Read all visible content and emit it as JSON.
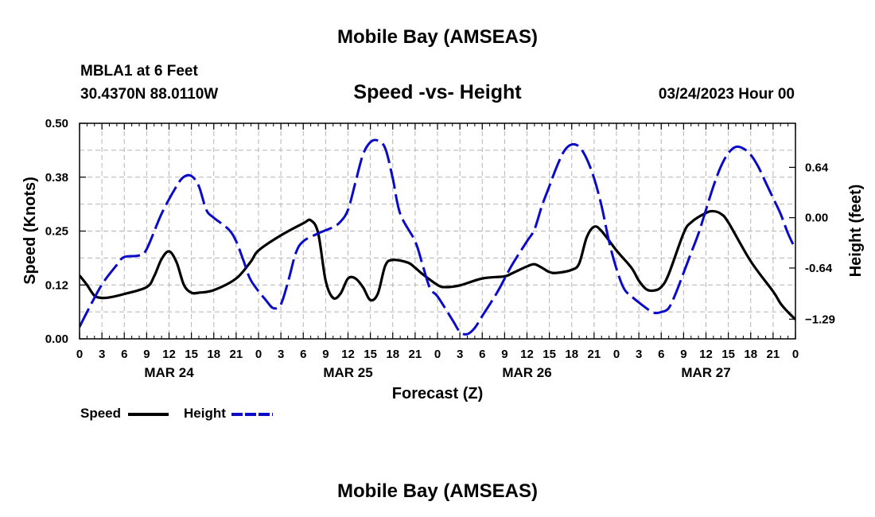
{
  "header": {
    "title": "Mobile Bay (AMSEAS)",
    "station": "MBLA1 at 6 Feet",
    "coords": "30.4370N  88.0110W",
    "subtitle": "Speed -vs- Height",
    "datetime": "03/24/2023 Hour 00",
    "footer_title": "Mobile Bay (AMSEAS)"
  },
  "chart_data": {
    "type": "line",
    "title": "Speed -vs- Height",
    "xlabel": "Forecast (Z)",
    "ylabel": "Speed (Knots)",
    "y2label": "Height (feet)",
    "ylim": [
      0,
      0.5
    ],
    "y2lim": [
      -1.54,
      1.2
    ],
    "xlim": [
      0,
      96
    ],
    "x_major_step_hours": 3,
    "x_tick_labels": [
      "0",
      "3",
      "6",
      "9",
      "12",
      "15",
      "18",
      "21",
      "0",
      "3",
      "6",
      "9",
      "12",
      "15",
      "18",
      "21",
      "0",
      "3",
      "6",
      "9",
      "12",
      "15",
      "18",
      "21",
      "0",
      "3",
      "6",
      "9",
      "12",
      "15",
      "18",
      "21",
      "0"
    ],
    "month_labels": [
      {
        "label": "MAR 24",
        "hour": 12
      },
      {
        "label": "MAR 25",
        "hour": 36
      },
      {
        "label": "MAR 26",
        "hour": 60
      },
      {
        "label": "MAR 27",
        "hour": 84
      }
    ],
    "y_ticks": [
      {
        "value": 0.0,
        "label": "0.00"
      },
      {
        "value": 0.125,
        "label": "0.12"
      },
      {
        "value": 0.25,
        "label": "0.25"
      },
      {
        "value": 0.375,
        "label": "0.38"
      },
      {
        "value": 0.5,
        "label": "0.50"
      }
    ],
    "y2_ticks": [
      {
        "value": 0.64,
        "label": "0.64"
      },
      {
        "value": 0.0,
        "label": "0.00"
      },
      {
        "value": -0.64,
        "label": "-0.64"
      },
      {
        "value": -1.29,
        "label": "−1.29"
      }
    ],
    "grid": true,
    "legend_position": "bottom-left",
    "series": [
      {
        "name": "Speed",
        "axis": "left",
        "color": "#000000",
        "dash": "solid",
        "points": [
          [
            0,
            0.147
          ],
          [
            1,
            0.125
          ],
          [
            2,
            0.1
          ],
          [
            3,
            0.095
          ],
          [
            4,
            0.096
          ],
          [
            6,
            0.104
          ],
          [
            9,
            0.12
          ],
          [
            10,
            0.145
          ],
          [
            11,
            0.185
          ],
          [
            12,
            0.203
          ],
          [
            13,
            0.178
          ],
          [
            14,
            0.125
          ],
          [
            15,
            0.107
          ],
          [
            16,
            0.107
          ],
          [
            18,
            0.113
          ],
          [
            21,
            0.14
          ],
          [
            23,
            0.18
          ],
          [
            24,
            0.205
          ],
          [
            27,
            0.24
          ],
          [
            30,
            0.268
          ],
          [
            31,
            0.275
          ],
          [
            32,
            0.245
          ],
          [
            33,
            0.135
          ],
          [
            34,
            0.095
          ],
          [
            35,
            0.105
          ],
          [
            36,
            0.14
          ],
          [
            37,
            0.14
          ],
          [
            38,
            0.12
          ],
          [
            39,
            0.09
          ],
          [
            40,
            0.105
          ],
          [
            41,
            0.17
          ],
          [
            42,
            0.183
          ],
          [
            44,
            0.177
          ],
          [
            45,
            0.165
          ],
          [
            46,
            0.15
          ],
          [
            48,
            0.125
          ],
          [
            49,
            0.12
          ],
          [
            51,
            0.124
          ],
          [
            54,
            0.14
          ],
          [
            57,
            0.145
          ],
          [
            58,
            0.152
          ],
          [
            60,
            0.168
          ],
          [
            61,
            0.173
          ],
          [
            62,
            0.165
          ],
          [
            63,
            0.155
          ],
          [
            64,
            0.153
          ],
          [
            66,
            0.16
          ],
          [
            67,
            0.175
          ],
          [
            68,
            0.235
          ],
          [
            69,
            0.26
          ],
          [
            70,
            0.25
          ],
          [
            72,
            0.205
          ],
          [
            74,
            0.165
          ],
          [
            75,
            0.135
          ],
          [
            76,
            0.115
          ],
          [
            77,
            0.112
          ],
          [
            78,
            0.12
          ],
          [
            79,
            0.15
          ],
          [
            81,
            0.245
          ],
          [
            82,
            0.27
          ],
          [
            84,
            0.292
          ],
          [
            85,
            0.296
          ],
          [
            86,
            0.29
          ],
          [
            87,
            0.27
          ],
          [
            90,
            0.18
          ],
          [
            93,
            0.11
          ],
          [
            94,
            0.082
          ],
          [
            95,
            0.062
          ],
          [
            96,
            0.045
          ]
        ]
      },
      {
        "name": "Height",
        "axis": "right",
        "color": "#0a0ac8",
        "dash": "dashed",
        "points": [
          [
            0,
            -1.39
          ],
          [
            1,
            -1.2
          ],
          [
            3,
            -0.85
          ],
          [
            5,
            -0.6
          ],
          [
            6,
            -0.5
          ],
          [
            8,
            -0.48
          ],
          [
            9,
            -0.4
          ],
          [
            11,
            0.05
          ],
          [
            13,
            0.4
          ],
          [
            14,
            0.52
          ],
          [
            15,
            0.53
          ],
          [
            16,
            0.4
          ],
          [
            17,
            0.1
          ],
          [
            18,
            0.0
          ],
          [
            20,
            -0.15
          ],
          [
            21,
            -0.3
          ],
          [
            22,
            -0.55
          ],
          [
            23,
            -0.8
          ],
          [
            25,
            -1.05
          ],
          [
            26,
            -1.15
          ],
          [
            27,
            -1.1
          ],
          [
            28,
            -0.8
          ],
          [
            29,
            -0.45
          ],
          [
            30,
            -0.3
          ],
          [
            32,
            -0.2
          ],
          [
            34,
            -0.12
          ],
          [
            35,
            -0.05
          ],
          [
            36,
            0.1
          ],
          [
            37,
            0.45
          ],
          [
            38,
            0.8
          ],
          [
            39,
            0.96
          ],
          [
            40,
            0.98
          ],
          [
            41,
            0.88
          ],
          [
            42,
            0.5
          ],
          [
            43,
            0.05
          ],
          [
            45,
            -0.3
          ],
          [
            46,
            -0.6
          ],
          [
            47,
            -0.9
          ],
          [
            48,
            -1.0
          ],
          [
            50,
            -1.3
          ],
          [
            51,
            -1.45
          ],
          [
            52,
            -1.48
          ],
          [
            53,
            -1.4
          ],
          [
            54,
            -1.25
          ],
          [
            56,
            -0.95
          ],
          [
            58,
            -0.6
          ],
          [
            60,
            -0.3
          ],
          [
            61,
            -0.15
          ],
          [
            62,
            0.15
          ],
          [
            63,
            0.4
          ],
          [
            64,
            0.65
          ],
          [
            65,
            0.85
          ],
          [
            66,
            0.93
          ],
          [
            67,
            0.9
          ],
          [
            68,
            0.75
          ],
          [
            69,
            0.5
          ],
          [
            70,
            0.15
          ],
          [
            71,
            -0.3
          ],
          [
            72,
            -0.65
          ],
          [
            73,
            -0.9
          ],
          [
            74,
            -1.0
          ],
          [
            76,
            -1.15
          ],
          [
            77,
            -1.21
          ],
          [
            78,
            -1.2
          ],
          [
            79,
            -1.15
          ],
          [
            80,
            -0.95
          ],
          [
            81,
            -0.7
          ],
          [
            82,
            -0.45
          ],
          [
            83,
            -0.2
          ],
          [
            84,
            0.1
          ],
          [
            85,
            0.4
          ],
          [
            86,
            0.65
          ],
          [
            87,
            0.82
          ],
          [
            88,
            0.9
          ],
          [
            89,
            0.88
          ],
          [
            90,
            0.8
          ],
          [
            91,
            0.65
          ],
          [
            92,
            0.45
          ],
          [
            93,
            0.25
          ],
          [
            94,
            0.05
          ],
          [
            95,
            -0.2
          ],
          [
            96,
            -0.4
          ]
        ]
      }
    ]
  },
  "legend": {
    "speed_label": "Speed",
    "height_label": "Height"
  }
}
